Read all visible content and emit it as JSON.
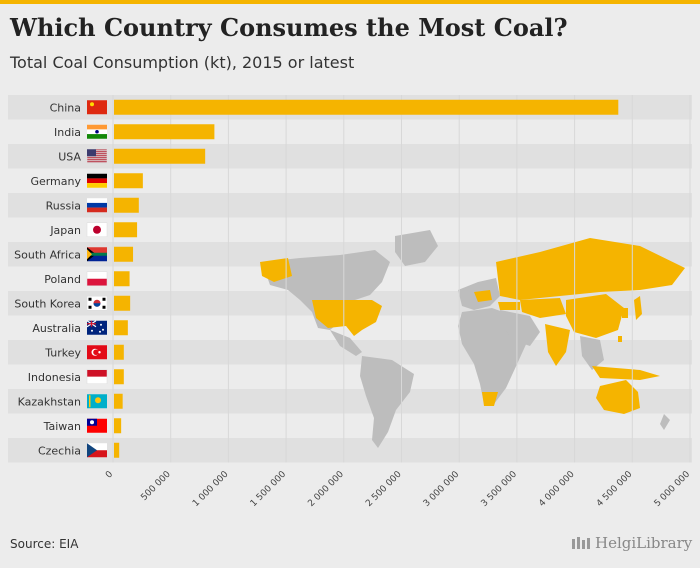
{
  "title": "Which Country Consumes the Most Coal?",
  "subtitle": "Total Coal Consumption (kt), 2015 or latest",
  "source": "Source: EIA",
  "logo_text": "HelgiLibrary",
  "colors": {
    "bar": "#f5b400",
    "band": "#e0e0e0",
    "map_land": "#bdbdbd",
    "map_highlight": "#f5b400",
    "grid": "#d8d8d8"
  },
  "chart_data": {
    "type": "bar",
    "orientation": "horizontal",
    "title": "Which Country Consumes the Most Coal?",
    "subtitle": "Total Coal Consumption (kt), 2015 or latest",
    "xlabel": "",
    "ylabel": "",
    "xlim": [
      0,
      5000000
    ],
    "x_ticks": [
      0,
      500000,
      1000000,
      1500000,
      2000000,
      2500000,
      3000000,
      3500000,
      4000000,
      4500000,
      5000000
    ],
    "x_tick_labels": [
      "0",
      "500 000",
      "1 000 000",
      "1 500 000",
      "2 000 000",
      "2 500 000",
      "3 000 000",
      "3 500 000",
      "4 000 000",
      "4 500 000",
      "5 000 000"
    ],
    "categories": [
      "China",
      "India",
      "USA",
      "Germany",
      "Russia",
      "Japan",
      "South Africa",
      "Poland",
      "South Korea",
      "Australia",
      "Turkey",
      "Indonesia",
      "Kazakhstan",
      "Taiwan",
      "Czechia"
    ],
    "values": [
      4370000,
      870000,
      790000,
      250000,
      215000,
      200000,
      165000,
      135000,
      140000,
      120000,
      85000,
      85000,
      75000,
      62000,
      45000
    ],
    "flag_icons": [
      "china-flag-icon",
      "india-flag-icon",
      "usa-flag-icon",
      "germany-flag-icon",
      "russia-flag-icon",
      "japan-flag-icon",
      "south-africa-flag-icon",
      "poland-flag-icon",
      "south-korea-flag-icon",
      "australia-flag-icon",
      "turkey-flag-icon",
      "indonesia-flag-icon",
      "kazakhstan-flag-icon",
      "taiwan-flag-icon",
      "czechia-flag-icon"
    ],
    "grid": true
  }
}
